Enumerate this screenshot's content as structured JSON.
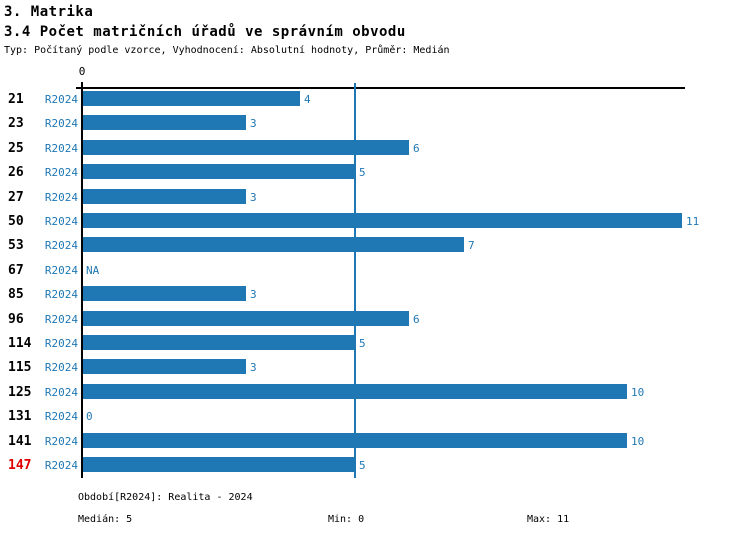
{
  "header": {
    "title": "3. Matrika",
    "subtitle": "3.4 Počet matričních úřadů ve správním obvodu",
    "meta": "Typ: Počítaný podle vzorce, Vyhodnocení: Absolutní hodnoty, Průměr: Medián"
  },
  "axis": {
    "zero_label": "0"
  },
  "chart_data": {
    "type": "bar",
    "orientation": "horizontal",
    "title": "3.4 Počet matričních úřadů ve správním obvodu",
    "categories": [
      "21",
      "23",
      "25",
      "26",
      "27",
      "50",
      "53",
      "67",
      "85",
      "96",
      "114",
      "115",
      "125",
      "131",
      "141",
      "147"
    ],
    "series": [
      {
        "name": "R2024",
        "values": [
          4,
          3,
          6,
          5,
          3,
          11,
          7,
          null,
          3,
          6,
          5,
          3,
          10,
          0,
          10,
          5
        ]
      }
    ],
    "value_labels": [
      "4",
      "3",
      "6",
      "5",
      "3",
      "11",
      "7",
      "NA",
      "3",
      "6",
      "5",
      "3",
      "10",
      "0",
      "10",
      "5"
    ],
    "xlim": [
      0,
      11
    ],
    "x_ticks": [
      0
    ],
    "median_line_value": 5,
    "highlight_category": "147",
    "legend": "none",
    "grid": "off",
    "colors": {
      "bar": "#1f77b4",
      "blue_text": "#1f77b4",
      "highlight_red": "#e00000",
      "axis": "#000000"
    }
  },
  "footer": {
    "period": "Období[R2024]: Realita - 2024",
    "median": "Medián: 5",
    "min": "Min: 0",
    "max": "Max: 11"
  }
}
